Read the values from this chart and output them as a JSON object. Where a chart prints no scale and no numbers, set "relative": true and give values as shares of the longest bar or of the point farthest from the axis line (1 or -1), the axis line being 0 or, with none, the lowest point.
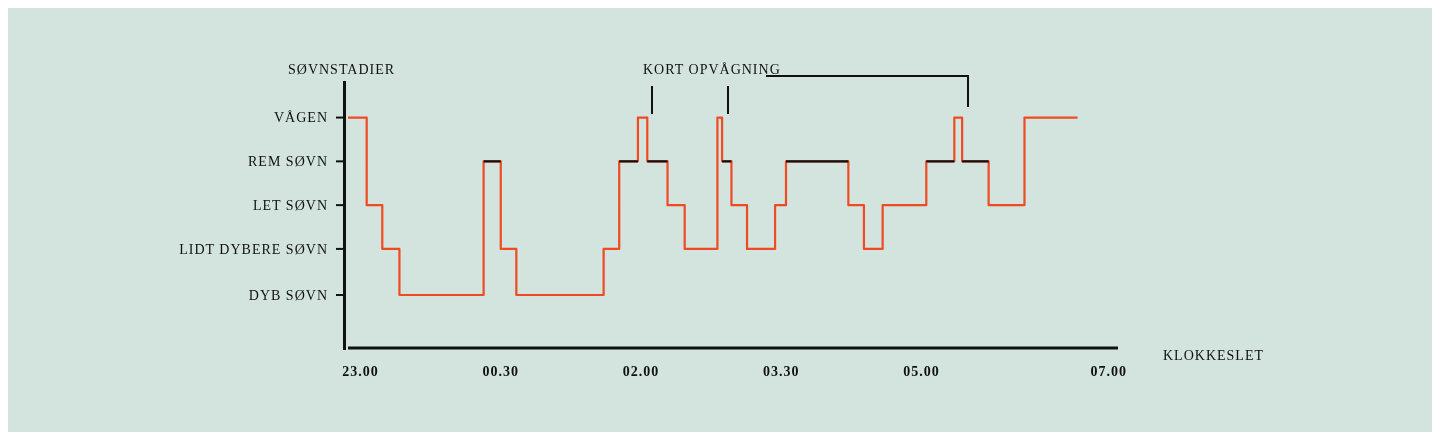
{
  "chart_data": {
    "type": "step",
    "ylabel": "SØVNSTADIER",
    "xlabel": "KLOKKESLET",
    "relative": true,
    "annotations": [
      "KORT OPVÅGNING",
      "VÅGEN",
      "REM SØVN",
      "LET SØVN",
      "LIDT DYBERE SØVN",
      "DYB SØVN"
    ],
    "xlim": [
      "2000-01-01T22:52",
      "2000-01-02T07:06"
    ],
    "xticks": [
      {
        "value": "2000-01-01T23:00",
        "label": "23.00"
      },
      {
        "value": "2000-01-02T00:30",
        "label": "00.30"
      },
      {
        "value": "2000-01-02T02:00",
        "label": "02.00"
      },
      {
        "value": "2000-01-02T03:30",
        "label": "03.30"
      },
      {
        "value": "2000-01-02T05:00",
        "label": "05.00"
      },
      {
        "value": "2000-01-02T07:00",
        "label": "07.00"
      }
    ],
    "grid": false,
    "legend": false,
    "marker": "none",
    "line_style": "solid",
    "series": [
      {
        "color": "#f04a23",
        "x": [
          "2000-01-01T22:52",
          "2000-01-01T23:04",
          "2000-01-01T23:14",
          "2000-01-01T23:25",
          "2000-01-02T00:19",
          "2000-01-02T00:30",
          "2000-01-02T00:40",
          "2000-01-02T01:36",
          "2000-01-02T01:46",
          "2000-01-02T01:58",
          "2000-01-02T02:04",
          "2000-01-02T02:17",
          "2000-01-02T02:28",
          "2000-01-02T02:49",
          "2000-01-02T02:52",
          "2000-01-02T02:58",
          "2000-01-02T03:08",
          "2000-01-02T03:26",
          "2000-01-02T03:33",
          "2000-01-02T04:13",
          "2000-01-02T04:23",
          "2000-01-02T04:35",
          "2000-01-02T05:03",
          "2000-01-02T05:21",
          "2000-01-02T05:26",
          "2000-01-02T05:43",
          "2000-01-02T06:06",
          "2000-01-02T06:40"
        ],
        "values": [
          1,
          0.62,
          0.43,
          0.23,
          0.81,
          0.43,
          0.23,
          0.43,
          0.81,
          1,
          0.81,
          0.62,
          0.43,
          1,
          0.81,
          0.62,
          0.43,
          0.62,
          0.81,
          0.62,
          0.43,
          0.62,
          0.81,
          1,
          0.81,
          0.62,
          1,
          1
        ]
      },
      {
        "color": "#111111",
        "x": [
          "2000-01-02T00:19",
          "2000-01-02T00:30"
        ],
        "values": [
          0.81,
          0.81
        ]
      },
      {
        "color": "#111111",
        "x": [
          "2000-01-02T01:46",
          "2000-01-02T01:58"
        ],
        "values": [
          0.81,
          0.81
        ]
      },
      {
        "color": "#111111",
        "x": [
          "2000-01-02T02:04",
          "2000-01-02T02:17"
        ],
        "values": [
          0.81,
          0.81
        ]
      },
      {
        "color": "#111111",
        "x": [
          "2000-01-02T02:52",
          "2000-01-02T02:58"
        ],
        "values": [
          0.81,
          0.81
        ]
      },
      {
        "color": "#111111",
        "x": [
          "2000-01-02T03:33",
          "2000-01-02T04:13"
        ],
        "values": [
          0.81,
          0.81
        ]
      },
      {
        "color": "#111111",
        "x": [
          "2000-01-02T05:03",
          "2000-01-02T05:21"
        ],
        "values": [
          0.81,
          0.81
        ]
      },
      {
        "color": "#111111",
        "x": [
          "2000-01-02T05:26",
          "2000-01-02T05:43"
        ],
        "values": [
          0.81,
          0.81
        ]
      }
    ]
  }
}
